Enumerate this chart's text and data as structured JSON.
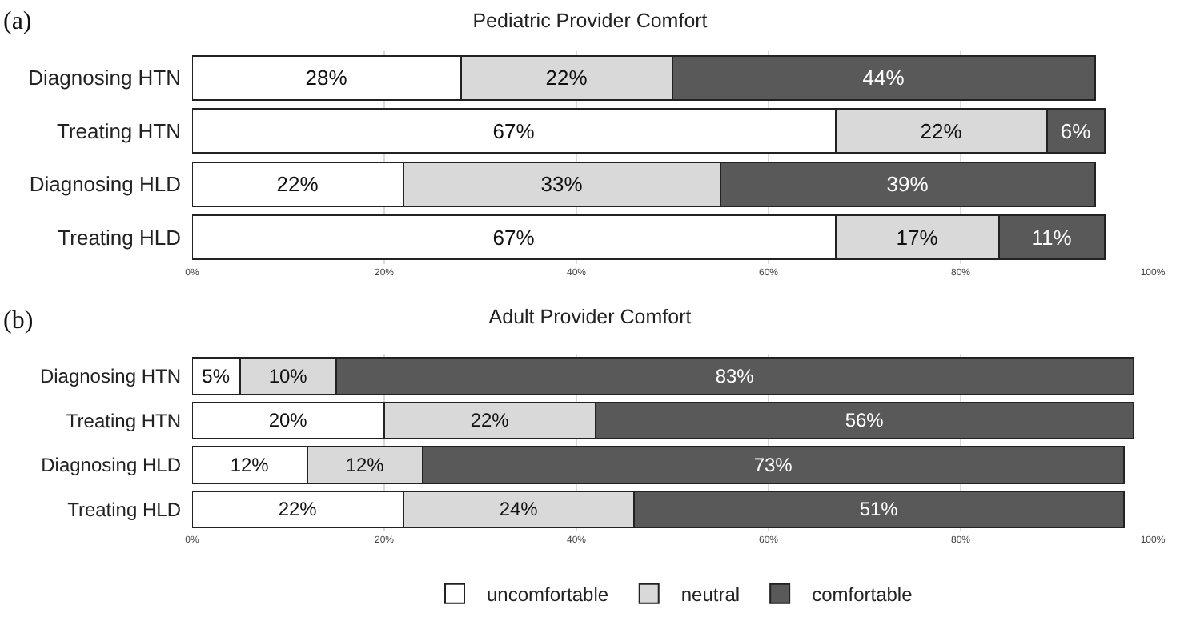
{
  "chart_data": [
    {
      "type": "bar",
      "orientation": "horizontal",
      "stacked": true,
      "title": "Pediatric Provider Comfort",
      "annotations": [
        "(a)"
      ],
      "categories": [
        "Diagnosing HTN",
        "Treating HTN",
        "Diagnosing HLD",
        "Treating HLD"
      ],
      "series": [
        {
          "color": "#ffffff",
          "values": [
            28,
            67,
            22,
            67
          ],
          "value_labels": [
            "28%",
            "67%",
            "22%",
            "67%"
          ]
        },
        {
          "color": "#d9d9d9",
          "values": [
            22,
            22,
            33,
            17
          ],
          "value_labels": [
            "22%",
            "22%",
            "33%",
            "17%"
          ]
        },
        {
          "color": "#595959",
          "values": [
            44,
            6,
            39,
            11
          ],
          "value_labels": [
            "44%",
            "6%",
            "39%",
            "11%"
          ]
        }
      ],
      "xlim": [
        0,
        100
      ],
      "xticks": [
        {
          "value": 0,
          "label": "0%"
        },
        {
          "value": 20,
          "label": "20%"
        },
        {
          "value": 40,
          "label": "40%"
        },
        {
          "value": 60,
          "label": "60%"
        },
        {
          "value": 80,
          "label": "80%"
        },
        {
          "value": 100,
          "label": "100%"
        }
      ],
      "grid": "x",
      "legend": false
    },
    {
      "type": "bar",
      "orientation": "horizontal",
      "stacked": true,
      "title": "Adult Provider Comfort",
      "annotations": [
        "(b)"
      ],
      "categories": [
        "Diagnosing HTN",
        "Treating HTN",
        "Diagnosing HLD",
        "Treating HLD"
      ],
      "series": [
        {
          "name": "uncomfortable",
          "color": "#ffffff",
          "values": [
            5,
            20,
            12,
            22
          ],
          "value_labels": [
            "5%",
            "20%",
            "12%",
            "22%"
          ]
        },
        {
          "name": "neutral",
          "color": "#d9d9d9",
          "values": [
            10,
            22,
            12,
            24
          ],
          "value_labels": [
            "10%",
            "22%",
            "12%",
            "24%"
          ]
        },
        {
          "name": "comfortable",
          "color": "#595959",
          "values": [
            83,
            56,
            73,
            51
          ],
          "value_labels": [
            "83%",
            "56%",
            "73%",
            "51%"
          ]
        }
      ],
      "xlim": [
        0,
        100
      ],
      "xticks": [
        {
          "value": 0,
          "label": "0%"
        },
        {
          "value": 20,
          "label": "20%"
        },
        {
          "value": 40,
          "label": "40%"
        },
        {
          "value": 60,
          "label": "60%"
        },
        {
          "value": 80,
          "label": "80%"
        },
        {
          "value": 100,
          "label": "100%"
        }
      ],
      "grid": "x",
      "legend": "bottom"
    }
  ]
}
